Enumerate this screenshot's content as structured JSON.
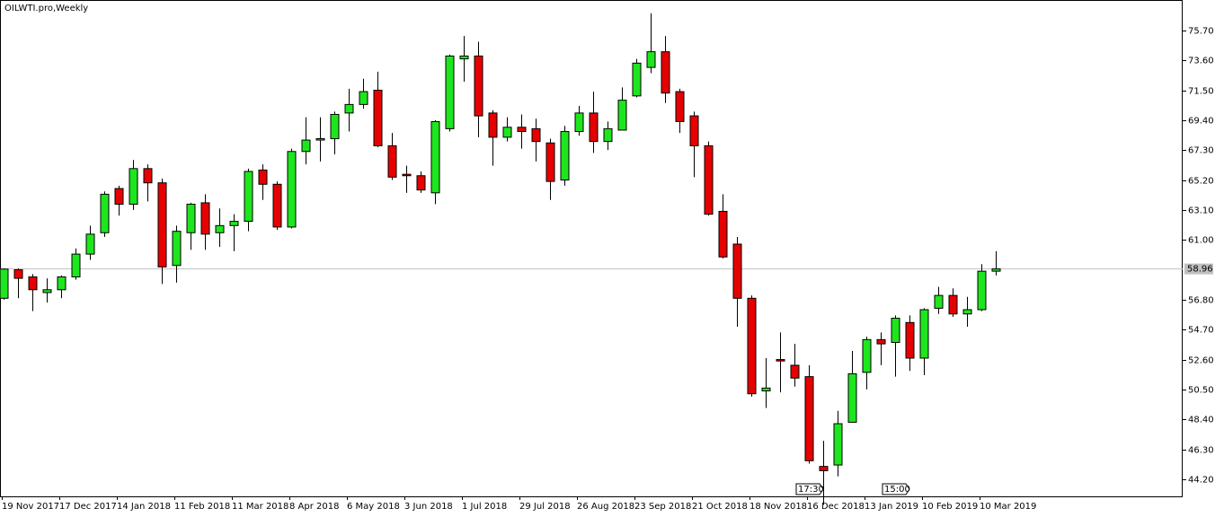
{
  "chart_data": {
    "type": "candlestick",
    "title": "OILWTI.pro,Weekly",
    "categories": [
      "19 Nov 2017",
      null,
      null,
      null,
      "17 Dec 2017",
      null,
      null,
      null,
      "14 Jan 2018",
      null,
      null,
      null,
      "11 Feb 2018",
      null,
      null,
      null,
      "11 Mar 2018",
      null,
      null,
      null,
      "8 Apr 2018",
      null,
      null,
      null,
      "6 May 2018",
      null,
      null,
      null,
      "3 Jun 2018",
      null,
      null,
      null,
      "1 Jul 2018",
      null,
      null,
      null,
      "29 Jul 2018",
      null,
      null,
      null,
      "26 Aug 2018",
      null,
      null,
      null,
      "23 Sep 2018",
      null,
      null,
      null,
      "21 Oct 2018",
      null,
      null,
      null,
      "18 Nov 2018",
      null,
      null,
      null,
      "16 Dec 2018",
      null,
      null,
      null,
      "13 Jan 2019",
      null,
      null,
      null,
      "10 Feb 2019",
      null,
      null,
      null,
      "10 Mar 2019",
      null
    ],
    "open": [
      56.9,
      58.9,
      58.4,
      57.3,
      57.5,
      58.4,
      60.0,
      61.5,
      64.6,
      63.5,
      66.0,
      65.0,
      59.2,
      61.5,
      63.6,
      61.5,
      62.0,
      62.3,
      65.9,
      64.9,
      61.9,
      67.2,
      68.0,
      68.1,
      69.9,
      70.5,
      71.5,
      67.6,
      65.6,
      65.5,
      64.3,
      68.8,
      73.7,
      73.9,
      69.9,
      68.2,
      68.9,
      68.8,
      67.8,
      65.2,
      68.6,
      69.9,
      67.9,
      68.7,
      71.1,
      73.1,
      74.2,
      71.4,
      69.7,
      67.6,
      63.0,
      60.7,
      56.9,
      50.4,
      52.6,
      52.2,
      51.4,
      45.1,
      45.2,
      48.2,
      51.7,
      54.0,
      53.8,
      55.2,
      52.7,
      56.2,
      57.1,
      55.8,
      56.1,
      58.8
    ],
    "high": [
      59.0,
      59.0,
      58.6,
      58.3,
      58.5,
      60.4,
      62.0,
      64.4,
      64.8,
      66.6,
      66.3,
      65.3,
      62.0,
      63.6,
      64.2,
      63.2,
      62.8,
      66.0,
      66.3,
      65.1,
      67.4,
      69.6,
      69.6,
      70.0,
      71.6,
      72.3,
      72.8,
      68.5,
      66.2,
      65.8,
      69.4,
      74.0,
      75.3,
      74.9,
      70.1,
      69.6,
      69.8,
      69.5,
      68.1,
      69.0,
      70.4,
      71.4,
      69.3,
      71.7,
      73.7,
      76.9,
      75.3,
      71.6,
      70.0,
      67.9,
      64.2,
      61.2,
      57.1,
      52.7,
      54.5,
      53.7,
      52.2,
      46.9,
      49.0,
      53.2,
      54.2,
      54.5,
      55.7,
      55.7,
      56.2,
      57.7,
      57.6,
      57.0,
      59.3,
      60.2
    ],
    "low": [
      56.8,
      56.9,
      56.0,
      56.6,
      56.9,
      58.2,
      59.6,
      61.2,
      62.7,
      63.1,
      63.7,
      57.9,
      58.0,
      60.3,
      60.3,
      60.5,
      60.2,
      61.6,
      63.8,
      61.7,
      61.8,
      66.3,
      66.5,
      67.0,
      68.6,
      70.2,
      67.5,
      65.2,
      64.3,
      64.3,
      63.5,
      68.6,
      72.1,
      68.2,
      66.2,
      67.9,
      67.4,
      66.5,
      63.8,
      64.8,
      68.3,
      67.1,
      67.3,
      68.7,
      71.0,
      72.7,
      70.6,
      68.5,
      65.4,
      62.7,
      59.7,
      54.9,
      50.0,
      49.2,
      50.3,
      50.7,
      45.3,
      42.4,
      44.4,
      48.2,
      50.5,
      52.2,
      51.4,
      51.8,
      51.5,
      55.8,
      55.6,
      54.9,
      56.0,
      58.5
    ],
    "close": [
      58.95,
      58.3,
      57.5,
      57.5,
      58.4,
      60.0,
      61.4,
      64.2,
      63.5,
      66.0,
      65.0,
      59.1,
      61.6,
      63.5,
      61.4,
      62.0,
      62.3,
      65.8,
      64.9,
      61.9,
      67.2,
      68.0,
      68.1,
      69.8,
      70.5,
      71.4,
      67.6,
      65.4,
      65.5,
      64.5,
      69.3,
      73.9,
      73.9,
      69.7,
      68.2,
      68.9,
      68.6,
      67.9,
      65.1,
      68.6,
      69.9,
      67.9,
      68.8,
      70.8,
      73.4,
      74.2,
      71.3,
      69.3,
      67.6,
      62.8,
      59.8,
      56.9,
      50.2,
      50.6,
      52.5,
      51.3,
      45.5,
      44.8,
      48.1,
      51.6,
      54.0,
      53.7,
      55.5,
      52.7,
      56.1,
      57.1,
      55.8,
      56.1,
      58.8,
      58.96
    ],
    "up_color": "#1ee61e",
    "down_color": "#e60000",
    "ylim": [
      43.0,
      77.83
    ],
    "yticks": [
      {
        "value": 75.7,
        "label": "75.70"
      },
      {
        "value": 73.6,
        "label": "73.60"
      },
      {
        "value": 71.5,
        "label": "71.50"
      },
      {
        "value": 69.4,
        "label": "69.40"
      },
      {
        "value": 67.3,
        "label": "67.30"
      },
      {
        "value": 65.2,
        "label": "65.20"
      },
      {
        "value": 63.1,
        "label": "63.10"
      },
      {
        "value": 61,
        "label": "61.00"
      },
      {
        "value": 56.8,
        "label": "56.80"
      },
      {
        "value": 54.7,
        "label": "54.70"
      },
      {
        "value": 52.6,
        "label": "52.60"
      },
      {
        "value": 50.5,
        "label": "50.50"
      },
      {
        "value": 48.4,
        "label": "48.40"
      },
      {
        "value": 46.3,
        "label": "46.30"
      },
      {
        "value": 44.2,
        "label": "44.20"
      }
    ],
    "last_price": {
      "value": 58.96,
      "label": "58.96"
    },
    "annotations": [
      {
        "index": 56,
        "label": "17:30"
      },
      {
        "index": 62,
        "label": "15:00"
      }
    ]
  }
}
